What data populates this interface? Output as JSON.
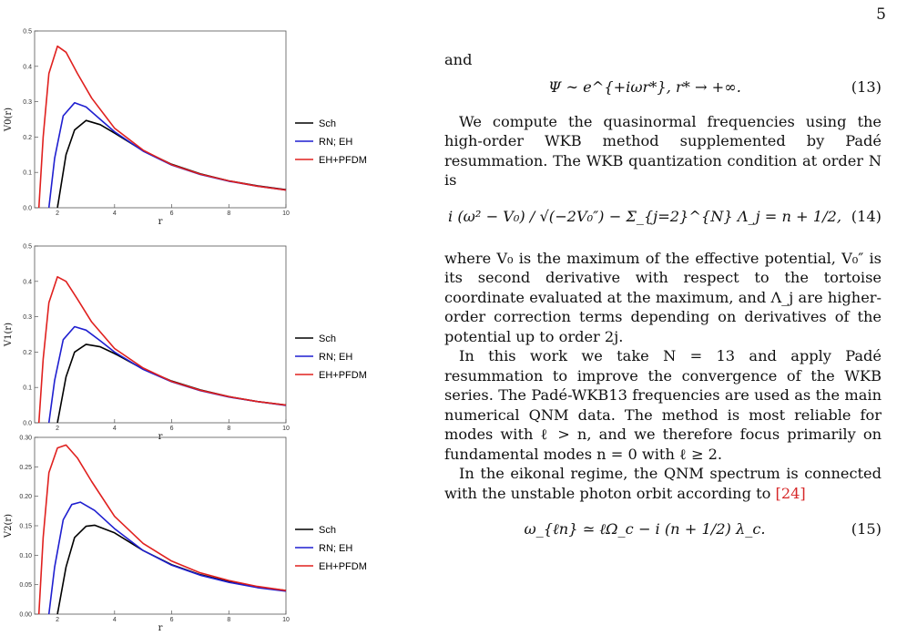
{
  "page_number": "5",
  "text": {
    "and": "and",
    "eq13_body": "Ψ ∼ e^{+iωr*},    r* → +∞.",
    "eq13_num": "(13)",
    "para1": "We compute the quasinormal frequencies using the high-order WKB method supplemented by Padé resummation. The WKB quantization condition at order N is",
    "eq14_body": "i (ω² − V₀) / √(−2V₀″) − Σ_{j=2}^{N} Λ_j = n + 1/2,",
    "eq14_num": "(14)",
    "para2": "where V₀ is the maximum of the effective potential, V₀″ is its second derivative with respect to the tortoise coordinate evaluated at the maximum, and Λ_j are higher-order correction terms depending on derivatives of the potential up to order 2j.",
    "para3": "In this work we take N = 13 and apply Padé resummation to improve the convergence of the WKB series. The Padé-WKB13 frequencies are used as the main numerical QNM data. The method is most reliable for modes with ℓ > n, and we therefore focus primarily on fundamental modes n = 0 with ℓ ≥ 2.",
    "para4_pre": "In the eikonal regime, the QNM spectrum is connected with the unstable photon orbit according to ",
    "para4_ref": "[24]",
    "eq15_body": "ω_{ℓn} ≃ ℓΩ_c − i (n + 1/2) λ_c.",
    "eq15_num": "(15)"
  },
  "legend": [
    "Sch",
    "RN; EH",
    "EH+PFDM"
  ],
  "colors": {
    "Sch": "#000000",
    "RN; EH": "#1f1fd0",
    "EH+PFDM": "#e0201e"
  },
  "chart_data": [
    {
      "type": "line",
      "xlabel": "r",
      "ylabel": "V0(r)",
      "xlim": [
        1.2,
        10
      ],
      "ylim": [
        0,
        0.5
      ],
      "xticks": [
        2,
        4,
        6,
        8,
        10
      ],
      "yticks": [
        0.0,
        0.1,
        0.2,
        0.3,
        0.4,
        0.5
      ],
      "series": [
        {
          "name": "Sch",
          "x": [
            2.0,
            2.3,
            2.6,
            3.0,
            3.5,
            4,
            5,
            6,
            7,
            8,
            9,
            10
          ],
          "y": [
            0.0,
            0.15,
            0.22,
            0.247,
            0.235,
            0.211,
            0.161,
            0.123,
            0.096,
            0.076,
            0.062,
            0.051
          ]
        },
        {
          "name": "RN; EH",
          "x": [
            1.7,
            1.9,
            2.2,
            2.6,
            3.0,
            3.5,
            4,
            5,
            6,
            7,
            8,
            9,
            10
          ],
          "y": [
            0.0,
            0.14,
            0.26,
            0.297,
            0.285,
            0.25,
            0.215,
            0.16,
            0.121,
            0.094,
            0.075,
            0.061,
            0.05
          ]
        },
        {
          "name": "EH+PFDM",
          "x": [
            1.35,
            1.5,
            1.7,
            2.0,
            2.3,
            2.7,
            3.2,
            4,
            5,
            6,
            7,
            8,
            9,
            10
          ],
          "y": [
            0.0,
            0.2,
            0.38,
            0.457,
            0.44,
            0.38,
            0.31,
            0.225,
            0.163,
            0.122,
            0.095,
            0.076,
            0.061,
            0.05
          ]
        }
      ]
    },
    {
      "type": "line",
      "xlabel": "r",
      "ylabel": "V1(r)",
      "xlim": [
        1.2,
        10
      ],
      "ylim": [
        0,
        0.5
      ],
      "xticks": [
        2,
        4,
        6,
        8,
        10
      ],
      "yticks": [
        0.0,
        0.1,
        0.2,
        0.3,
        0.4,
        0.5
      ],
      "series": [
        {
          "name": "Sch",
          "x": [
            2.0,
            2.3,
            2.6,
            3.0,
            3.5,
            4,
            5,
            6,
            7,
            8,
            9,
            10
          ],
          "y": [
            0.0,
            0.13,
            0.2,
            0.222,
            0.215,
            0.196,
            0.152,
            0.118,
            0.093,
            0.074,
            0.06,
            0.05
          ]
        },
        {
          "name": "RN; EH",
          "x": [
            1.7,
            1.9,
            2.2,
            2.6,
            3.0,
            3.5,
            4,
            5,
            6,
            7,
            8,
            9,
            10
          ],
          "y": [
            0.0,
            0.12,
            0.235,
            0.272,
            0.262,
            0.232,
            0.2,
            0.151,
            0.116,
            0.091,
            0.073,
            0.06,
            0.049
          ]
        },
        {
          "name": "EH+PFDM",
          "x": [
            1.35,
            1.5,
            1.7,
            2.0,
            2.3,
            2.7,
            3.2,
            4,
            5,
            6,
            7,
            8,
            9,
            10
          ],
          "y": [
            0.0,
            0.18,
            0.34,
            0.413,
            0.4,
            0.35,
            0.285,
            0.21,
            0.155,
            0.117,
            0.092,
            0.074,
            0.06,
            0.05
          ]
        }
      ]
    },
    {
      "type": "line",
      "xlabel": "r",
      "ylabel": "V2(r)",
      "xlim": [
        1.2,
        10
      ],
      "ylim": [
        0,
        0.3
      ],
      "xticks": [
        2,
        4,
        6,
        8,
        10
      ],
      "yticks": [
        0.0,
        0.05,
        0.1,
        0.15,
        0.2,
        0.25,
        0.3
      ],
      "series": [
        {
          "name": "Sch",
          "x": [
            2.0,
            2.3,
            2.6,
            3.0,
            3.3,
            4,
            5,
            6,
            7,
            8,
            9,
            10
          ],
          "y": [
            0.0,
            0.08,
            0.13,
            0.149,
            0.151,
            0.138,
            0.108,
            0.084,
            0.067,
            0.055,
            0.046,
            0.04
          ]
        },
        {
          "name": "RN; EH",
          "x": [
            1.7,
            1.9,
            2.2,
            2.5,
            2.8,
            3.3,
            4,
            5,
            6,
            7,
            8,
            9,
            10
          ],
          "y": [
            0.0,
            0.08,
            0.16,
            0.186,
            0.19,
            0.176,
            0.145,
            0.108,
            0.083,
            0.066,
            0.054,
            0.045,
            0.039
          ]
        },
        {
          "name": "EH+PFDM",
          "x": [
            1.35,
            1.5,
            1.7,
            2.0,
            2.3,
            2.7,
            3.2,
            4,
            5,
            6,
            7,
            8,
            9,
            10
          ],
          "y": [
            0.0,
            0.13,
            0.24,
            0.282,
            0.287,
            0.265,
            0.225,
            0.166,
            0.12,
            0.09,
            0.07,
            0.057,
            0.047,
            0.04
          ]
        }
      ]
    }
  ]
}
